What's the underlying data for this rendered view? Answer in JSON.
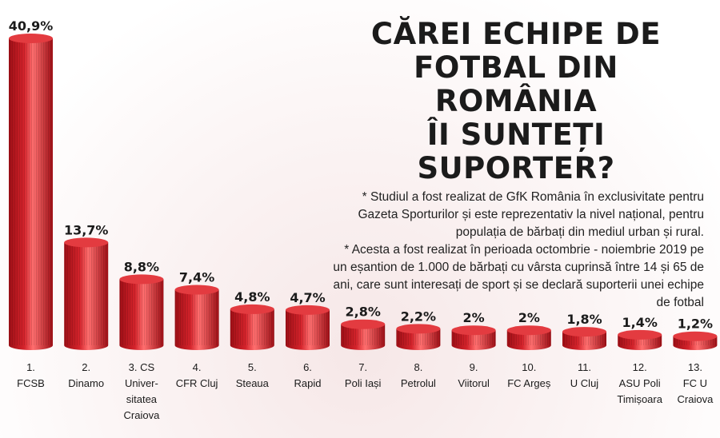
{
  "header": {
    "title_lines": [
      "CĂREI ECHIPE DE",
      "FOTBAL DIN ROMÂNIA",
      "ÎI SUNTEȚI SUPORTER?"
    ],
    "note_1": "* Studiul a fost realizat de GfK România în exclusivitate pentru Gazeta Sporturilor și este reprezentativ la nivel național, pentru populația de bărbați din mediul urban și rural.",
    "note_2": "* Acesta a fost realizat în perioada octombrie - noiembrie 2019 pe un eșantion de 1.000 de bărbați cu vârsta cuprinsă între 14 și 65 de ani, care sunt interesați de sport și se declară suporterii unei echipe de fotbal"
  },
  "colors": {
    "bar_dark": "#9e0f16",
    "bar_mid": "#d4232b",
    "bar_light": "#ff6f6f",
    "bar_top": "#e33b40",
    "label": "#1b1b1b"
  },
  "chart_data": {
    "type": "bar",
    "title": "CĂREI ECHIPE DE FOTBAL DIN ROMÂNIA ÎI SUNTEȚI SUPORTER?",
    "value_labels": [
      "40,9%",
      "13,7%",
      "8,8%",
      "7,4%",
      "4,8%",
      "4,7%",
      "2,8%",
      "2,2%",
      "2%",
      "2%",
      "1,8%",
      "1,4%",
      "1,2%"
    ],
    "values": [
      40.9,
      13.7,
      8.8,
      7.4,
      4.8,
      4.7,
      2.8,
      2.2,
      2.0,
      2.0,
      1.8,
      1.4,
      1.2
    ],
    "category_labels": [
      [
        "1.",
        "FCSB"
      ],
      [
        "2.",
        "Dinamo"
      ],
      [
        "3. CS",
        "Univer-",
        "sitatea",
        "Craiova"
      ],
      [
        "4.",
        "CFR Cluj"
      ],
      [
        "5.",
        "Steaua"
      ],
      [
        "6.",
        "Rapid"
      ],
      [
        "7.",
        "Poli Iași"
      ],
      [
        "8.",
        "Petrolul"
      ],
      [
        "9.",
        "Viitorul"
      ],
      [
        "10.",
        "FC Argeș"
      ],
      [
        "11.",
        "U Cluj"
      ],
      [
        "12.",
        "ASU Poli",
        "Timișoara"
      ],
      [
        "13.",
        "FC U",
        "Craiova"
      ]
    ],
    "ylim": [
      0,
      40.9
    ],
    "grid": false,
    "legend": "none"
  }
}
